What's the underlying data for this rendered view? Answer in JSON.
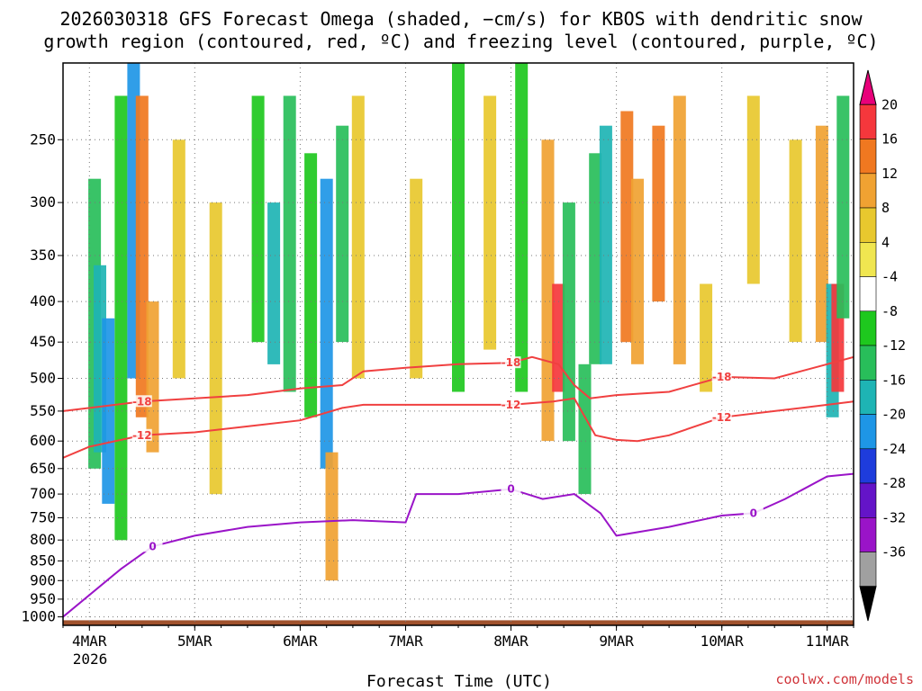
{
  "header": {
    "title_line1": "2026030318 GFS Forecast Omega (shaded, −cm/s) for KBOS with dendritic snow",
    "title_line2": "growth region (contoured, red, ºC) and freezing level (contoured, purple, ºC)"
  },
  "footer": {
    "credit": "coolwx.com/models"
  },
  "chart_data": {
    "type": "heatmap",
    "title": "2026030318 GFS Forecast Omega (shaded, −cm/s) for KBOS with dendritic snow growth region (contoured, red, ºC) and freezing level (contoured, purple, ºC)",
    "xlabel": "Forecast Time (UTC)",
    "ylabel": "",
    "x_tick_labels": [
      "4MAR",
      "5MAR",
      "6MAR",
      "7MAR",
      "8MAR",
      "9MAR",
      "10MAR",
      "11MAR"
    ],
    "x_tick_values": [
      0,
      1,
      2,
      3,
      4,
      5,
      6,
      7
    ],
    "x_year_label": "2026",
    "xlim": [
      -0.25,
      7.25
    ],
    "y_tick_labels": [
      "250",
      "300",
      "350",
      "400",
      "450",
      "500",
      "550",
      "600",
      "650",
      "700",
      "750",
      "800",
      "850",
      "900",
      "950",
      "1000"
    ],
    "y_tick_values": [
      250,
      300,
      350,
      400,
      450,
      500,
      550,
      600,
      650,
      700,
      750,
      800,
      850,
      900,
      950,
      1000
    ],
    "ylim": [
      1025,
      200
    ],
    "y_scale": "log",
    "grid": true,
    "colorbar": {
      "labels": [
        "20",
        "16",
        "12",
        "8",
        "4",
        "-4",
        "-8",
        "-12",
        "-16",
        "-20",
        "-24",
        "-28",
        "-32",
        "-36"
      ],
      "bins": [
        {
          "color": "#e8007a"
        },
        {
          "color": "#f5373c"
        },
        {
          "color": "#f07820"
        },
        {
          "color": "#f0a232"
        },
        {
          "color": "#e8c82e"
        },
        {
          "color": "#f0e650"
        },
        {
          "color": "#ffffff"
        },
        {
          "color": "#1ec81e"
        },
        {
          "color": "#28be5a"
        },
        {
          "color": "#1eb4b4"
        },
        {
          "color": "#1e96e6"
        },
        {
          "color": "#1e3cdc"
        },
        {
          "color": "#6414c8"
        },
        {
          "color": "#9a14c8"
        },
        {
          "color": "#a0a0a0"
        },
        {
          "color": "#000000"
        }
      ]
    },
    "omega_cells": [
      {
        "t": 0.05,
        "p0": 280,
        "p1": 650,
        "v": -12
      },
      {
        "t": 0.1,
        "p0": 360,
        "p1": 620,
        "v": -16
      },
      {
        "t": 0.18,
        "p0": 420,
        "p1": 720,
        "v": -20
      },
      {
        "t": 0.3,
        "p0": 220,
        "p1": 800,
        "v": -8
      },
      {
        "t": 0.42,
        "p0": 200,
        "p1": 500,
        "v": -20
      },
      {
        "t": 0.5,
        "p0": 220,
        "p1": 560,
        "v": 12
      },
      {
        "t": 0.6,
        "p0": 400,
        "p1": 620,
        "v": 8
      },
      {
        "t": 0.85,
        "p0": 250,
        "p1": 500,
        "v": 4
      },
      {
        "t": 1.2,
        "p0": 300,
        "p1": 700,
        "v": 4
      },
      {
        "t": 1.6,
        "p0": 220,
        "p1": 450,
        "v": -8
      },
      {
        "t": 1.75,
        "p0": 300,
        "p1": 480,
        "v": -16
      },
      {
        "t": 1.9,
        "p0": 220,
        "p1": 520,
        "v": -12
      },
      {
        "t": 2.1,
        "p0": 260,
        "p1": 560,
        "v": -8
      },
      {
        "t": 2.25,
        "p0": 280,
        "p1": 650,
        "v": -20
      },
      {
        "t": 2.3,
        "p0": 620,
        "p1": 900,
        "v": 8
      },
      {
        "t": 2.4,
        "p0": 240,
        "p1": 450,
        "v": -12
      },
      {
        "t": 2.55,
        "p0": 220,
        "p1": 500,
        "v": 4
      },
      {
        "t": 3.1,
        "p0": 280,
        "p1": 500,
        "v": 4
      },
      {
        "t": 3.5,
        "p0": 200,
        "p1": 520,
        "v": -8
      },
      {
        "t": 3.8,
        "p0": 220,
        "p1": 460,
        "v": 4
      },
      {
        "t": 4.1,
        "p0": 200,
        "p1": 520,
        "v": -8
      },
      {
        "t": 4.35,
        "p0": 250,
        "p1": 600,
        "v": 8
      },
      {
        "t": 4.45,
        "p0": 380,
        "p1": 520,
        "v": 16
      },
      {
        "t": 4.55,
        "p0": 300,
        "p1": 600,
        "v": -12
      },
      {
        "t": 4.7,
        "p0": 480,
        "p1": 700,
        "v": -12
      },
      {
        "t": 4.8,
        "p0": 260,
        "p1": 480,
        "v": -12
      },
      {
        "t": 4.9,
        "p0": 240,
        "p1": 480,
        "v": -16
      },
      {
        "t": 5.1,
        "p0": 230,
        "p1": 450,
        "v": 12
      },
      {
        "t": 5.2,
        "p0": 280,
        "p1": 480,
        "v": 8
      },
      {
        "t": 5.4,
        "p0": 240,
        "p1": 400,
        "v": 12
      },
      {
        "t": 5.6,
        "p0": 220,
        "p1": 480,
        "v": 8
      },
      {
        "t": 5.85,
        "p0": 380,
        "p1": 520,
        "v": 4
      },
      {
        "t": 6.3,
        "p0": 220,
        "p1": 380,
        "v": 4
      },
      {
        "t": 6.7,
        "p0": 250,
        "p1": 450,
        "v": 4
      },
      {
        "t": 6.95,
        "p0": 240,
        "p1": 450,
        "v": 8
      },
      {
        "t": 7.05,
        "p0": 380,
        "p1": 560,
        "v": -16
      },
      {
        "t": 7.1,
        "p0": 380,
        "p1": 520,
        "v": 16
      },
      {
        "t": 7.15,
        "p0": 220,
        "p1": 420,
        "v": -12
      }
    ],
    "contours": {
      "dgz_minus18": {
        "label": "-18",
        "color": "#f04040",
        "points": [
          [
            -0.25,
            550
          ],
          [
            0.0,
            545
          ],
          [
            0.5,
            535
          ],
          [
            1.0,
            530
          ],
          [
            1.5,
            525
          ],
          [
            2.0,
            515
          ],
          [
            2.4,
            510
          ],
          [
            2.6,
            490
          ],
          [
            3.0,
            485
          ],
          [
            3.5,
            480
          ],
          [
            4.0,
            478
          ],
          [
            4.2,
            470
          ],
          [
            4.45,
            480
          ],
          [
            4.6,
            510
          ],
          [
            4.75,
            530
          ],
          [
            5.0,
            525
          ],
          [
            5.5,
            520
          ],
          [
            6.0,
            498
          ],
          [
            6.5,
            500
          ],
          [
            7.0,
            480
          ],
          [
            7.25,
            470
          ]
        ]
      },
      "dgz_minus12": {
        "label": "-12",
        "color": "#f04040",
        "points": [
          [
            -0.25,
            630
          ],
          [
            0.0,
            610
          ],
          [
            0.5,
            590
          ],
          [
            1.0,
            585
          ],
          [
            1.5,
            575
          ],
          [
            2.0,
            565
          ],
          [
            2.4,
            545
          ],
          [
            2.6,
            540
          ],
          [
            3.0,
            540
          ],
          [
            3.5,
            540
          ],
          [
            4.0,
            540
          ],
          [
            4.4,
            535
          ],
          [
            4.6,
            530
          ],
          [
            4.8,
            590
          ],
          [
            5.0,
            598
          ],
          [
            5.2,
            600
          ],
          [
            5.5,
            590
          ],
          [
            6.0,
            560
          ],
          [
            6.5,
            550
          ],
          [
            7.0,
            540
          ],
          [
            7.25,
            535
          ]
        ]
      },
      "freezing_0": {
        "label": "0",
        "color": "#9a14c8",
        "points": [
          [
            -0.25,
            1000
          ],
          [
            0.3,
            870
          ],
          [
            0.6,
            815
          ],
          [
            1.0,
            790
          ],
          [
            1.5,
            770
          ],
          [
            2.0,
            760
          ],
          [
            2.5,
            755
          ],
          [
            3.0,
            760
          ],
          [
            3.1,
            700
          ],
          [
            3.5,
            700
          ],
          [
            4.0,
            690
          ],
          [
            4.3,
            710
          ],
          [
            4.6,
            700
          ],
          [
            4.85,
            740
          ],
          [
            5.0,
            790
          ],
          [
            5.5,
            770
          ],
          [
            6.0,
            745
          ],
          [
            6.3,
            740
          ],
          [
            6.6,
            710
          ],
          [
            7.0,
            665
          ],
          [
            7.25,
            660
          ]
        ]
      }
    }
  }
}
